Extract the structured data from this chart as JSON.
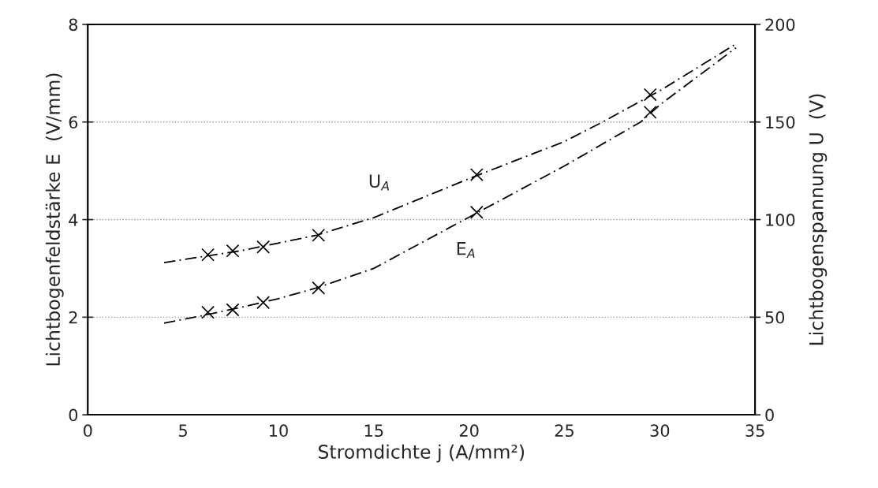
{
  "chart_data": {
    "type": "scatter",
    "xlabel": "Stromdichte j (A/mm²)",
    "ylabel": "Lichtbogenfeldstärke E  (V/mm)",
    "y2label": "Lichtbogenspannung U  (V)",
    "xlim": [
      0,
      35
    ],
    "xticks": [
      0,
      5,
      10,
      15,
      20,
      25,
      30,
      35
    ],
    "ylim": [
      0,
      8
    ],
    "yticks": [
      0,
      2,
      4,
      6,
      8
    ],
    "y2lim": [
      0,
      200
    ],
    "y2ticks": [
      0,
      50,
      100,
      150,
      200
    ],
    "grid": "y",
    "marker": "cross",
    "series": [
      {
        "color": "#000000",
        "axis": "y2",
        "x": [
          6.3,
          7.6,
          9.2,
          12.1,
          20.4,
          29.5
        ],
        "values": [
          82,
          84,
          86,
          92,
          123,
          164
        ]
      },
      {
        "color": "#000000",
        "x": [
          6.3,
          7.6,
          9.2,
          12.1,
          20.4,
          29.5
        ],
        "values": [
          2.1,
          2.15,
          2.3,
          2.6,
          4.15,
          6.2
        ]
      },
      {
        "type": "line",
        "name": "U$_{A}$",
        "color": "#000000",
        "line_style": "dashed",
        "marker": "none",
        "axis": "y2",
        "x": [
          4,
          6,
          8,
          10,
          12,
          15,
          20,
          25,
          27,
          30,
          34
        ],
        "values": [
          78,
          81,
          84,
          88,
          92,
          101,
          121,
          140,
          150,
          166,
          190
        ]
      },
      {
        "type": "line",
        "name": "E$_{A}$",
        "color": "#000000",
        "line_style": "dashed",
        "marker": "none",
        "x": [
          4,
          6,
          8,
          10,
          12,
          15,
          20,
          25,
          29,
          30,
          34
        ],
        "values": [
          1.88,
          2.03,
          2.2,
          2.38,
          2.6,
          3.0,
          4.05,
          5.1,
          6.0,
          6.35,
          7.52
        ]
      }
    ]
  }
}
